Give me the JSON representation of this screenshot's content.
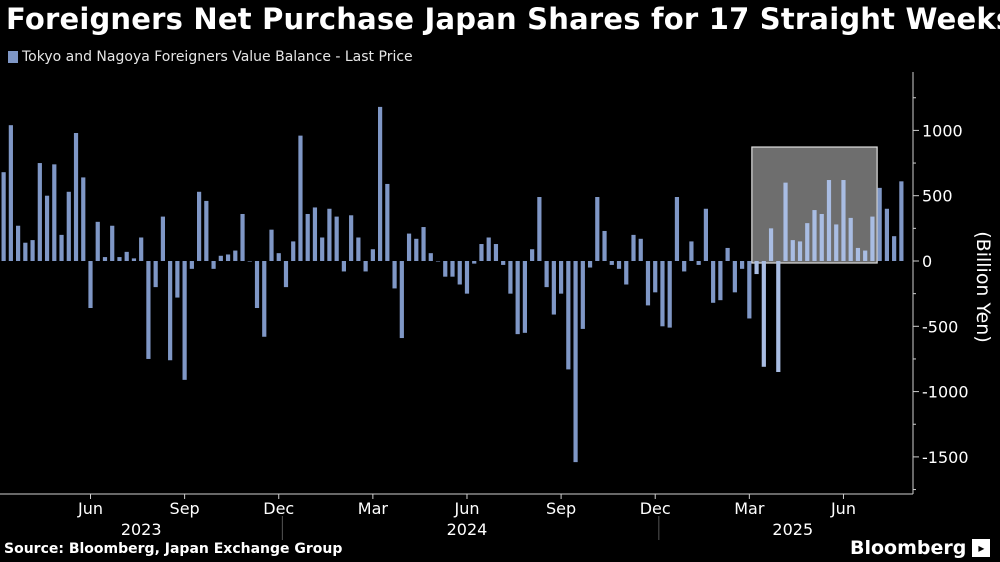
{
  "title": "Foreigners Net Purchase Japan Shares for 17 Straight Weeks",
  "legend_label": "Tokyo and Nagoya Foreigners Value Balance - Last Price",
  "source": "Source: Bloomberg, Japan Exchange Group",
  "brand": "Bloomberg",
  "brand_icon": "bloomberg-terminal-icon",
  "colors": {
    "background": "#000000",
    "bar": "#7f97c6",
    "highlight_box": "#6e6e6e",
    "axis": "#cfcfcf"
  },
  "chart_data": {
    "type": "bar",
    "ylabel": "(Billion Yen)",
    "ylim": [
      -1800,
      1400
    ],
    "yticks": [
      1000,
      500,
      0,
      -500,
      -1000,
      -1500
    ],
    "ytick_labels": [
      "1000",
      "500",
      "0",
      "-500",
      "-1000",
      "-1500"
    ],
    "month_ticks": [
      {
        "label": "Jun",
        "bar_index": 12
      },
      {
        "label": "Sep",
        "bar_index": 25
      },
      {
        "label": "Dec",
        "bar_index": 38
      },
      {
        "label": "Mar",
        "bar_index": 51
      },
      {
        "label": "Jun",
        "bar_index": 64
      },
      {
        "label": "Sep",
        "bar_index": 77
      },
      {
        "label": "Dec",
        "bar_index": 90
      },
      {
        "label": "Mar",
        "bar_index": 103
      },
      {
        "label": "Jun",
        "bar_index": 116
      }
    ],
    "years": [
      {
        "label": "2023",
        "bar_index": 19
      },
      {
        "label": "2024",
        "bar_index": 64
      },
      {
        "label": "2025",
        "bar_index": 109
      }
    ],
    "year_separators": [
      38.5,
      90.5
    ],
    "highlight_range": [
      104,
      120
    ],
    "values": [
      680,
      1040,
      270,
      140,
      160,
      750,
      500,
      740,
      200,
      530,
      980,
      640,
      -360,
      300,
      30,
      270,
      30,
      70,
      20,
      180,
      -750,
      -200,
      340,
      -760,
      -280,
      -910,
      -60,
      530,
      460,
      -60,
      40,
      50,
      80,
      360,
      0,
      -360,
      -580,
      240,
      60,
      -200,
      150,
      960,
      360,
      410,
      180,
      400,
      340,
      -80,
      350,
      180,
      -80,
      90,
      1180,
      590,
      -210,
      -590,
      210,
      170,
      260,
      60,
      0,
      -120,
      -120,
      -180,
      -250,
      -20,
      130,
      180,
      130,
      -30,
      -250,
      -560,
      -550,
      90,
      490,
      -200,
      -410,
      -250,
      -830,
      -1540,
      -520,
      -50,
      490,
      230,
      -30,
      -60,
      -180,
      200,
      170,
      -340,
      -240,
      -500,
      -510,
      490,
      -80,
      150,
      -30,
      400,
      -320,
      -300,
      100,
      -240,
      -60,
      -440,
      -100,
      -810,
      250,
      -850,
      600,
      160,
      150,
      290,
      390,
      360,
      620,
      280,
      620,
      330,
      100,
      80,
      340,
      560,
      400,
      190,
      610
    ]
  }
}
